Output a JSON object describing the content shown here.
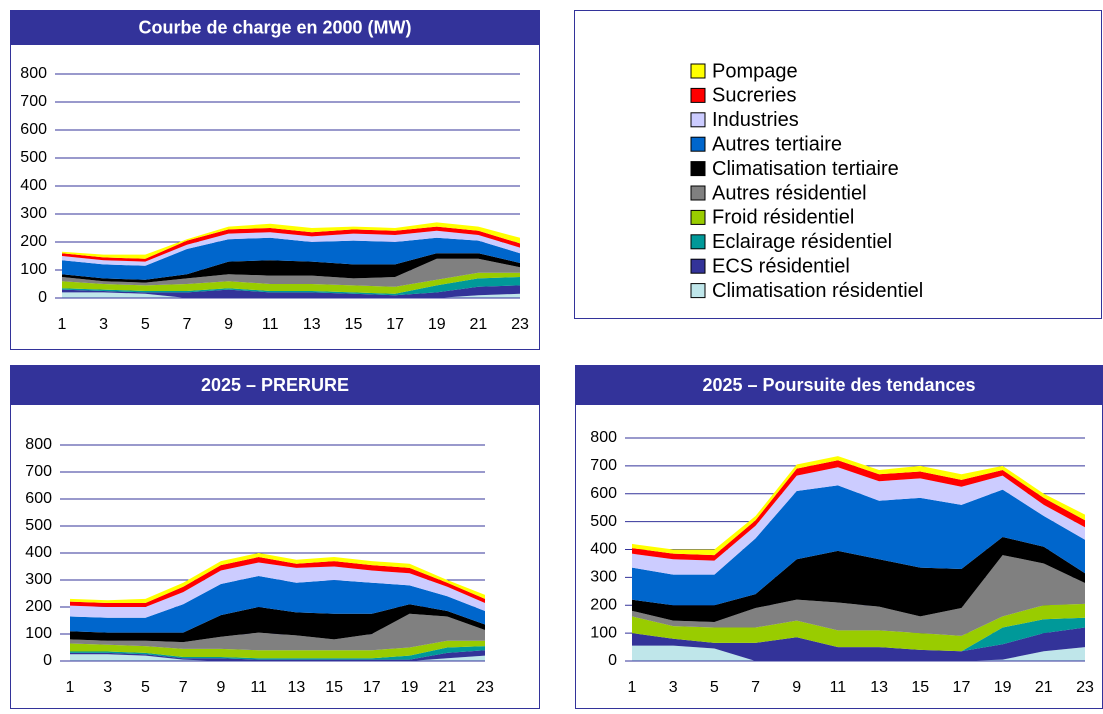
{
  "chart_data": [
    {
      "type": "area",
      "title": "Courbe de charge en 2000 (MW)",
      "x": [
        1,
        3,
        5,
        7,
        9,
        11,
        13,
        15,
        17,
        19,
        21,
        23
      ],
      "xlim": [
        1,
        23
      ],
      "xticks": [
        1,
        3,
        5,
        7,
        9,
        11,
        13,
        15,
        17,
        19,
        21,
        23
      ],
      "ylim": [
        0,
        800
      ],
      "yticks": [
        0,
        100,
        200,
        300,
        400,
        500,
        600,
        700,
        800
      ],
      "grid": true,
      "series": [
        {
          "name": "Climatisation résidentiel",
          "color": "#bfe6ea",
          "values": [
            20,
            20,
            15,
            0,
            0,
            0,
            0,
            0,
            0,
            0,
            10,
            15
          ]
        },
        {
          "name": "ECS résidentiel",
          "color": "#333399",
          "values": [
            10,
            5,
            5,
            20,
            30,
            20,
            20,
            15,
            10,
            20,
            30,
            30
          ]
        },
        {
          "name": "Eclairage résidentiel",
          "color": "#009999",
          "values": [
            5,
            5,
            5,
            5,
            5,
            5,
            5,
            5,
            5,
            25,
            30,
            30
          ]
        },
        {
          "name": "Froid résidentiel",
          "color": "#99cc00",
          "values": [
            25,
            20,
            20,
            25,
            25,
            25,
            25,
            25,
            25,
            20,
            20,
            15
          ]
        },
        {
          "name": "Autres résidentiel",
          "color": "#808080",
          "values": [
            15,
            10,
            10,
            20,
            25,
            30,
            30,
            25,
            35,
            75,
            50,
            20
          ]
        },
        {
          "name": "Climatisation tertiaire",
          "color": "#000000",
          "values": [
            10,
            10,
            10,
            15,
            45,
            55,
            50,
            50,
            45,
            20,
            20,
            15
          ]
        },
        {
          "name": "Autres tertiaire",
          "color": "#0066cc",
          "values": [
            50,
            50,
            50,
            90,
            80,
            80,
            70,
            85,
            80,
            55,
            45,
            35
          ]
        },
        {
          "name": "Industries",
          "color": "#ccccff",
          "values": [
            15,
            15,
            15,
            15,
            20,
            20,
            20,
            25,
            25,
            25,
            20,
            20
          ]
        },
        {
          "name": "Sucreries",
          "color": "#ff0000",
          "values": [
            10,
            10,
            10,
            15,
            15,
            15,
            15,
            15,
            15,
            15,
            15,
            15
          ]
        },
        {
          "name": "Pompage",
          "color": "#ffff00",
          "values": [
            5,
            10,
            15,
            5,
            10,
            15,
            15,
            10,
            10,
            15,
            15,
            20
          ]
        }
      ]
    },
    {
      "type": "area",
      "title": "2025 – PRERURE",
      "x": [
        1,
        3,
        5,
        7,
        9,
        11,
        13,
        15,
        17,
        19,
        21,
        23
      ],
      "xlim": [
        1,
        23
      ],
      "xticks": [
        1,
        3,
        5,
        7,
        9,
        11,
        13,
        15,
        17,
        19,
        21,
        23
      ],
      "ylim": [
        0,
        800
      ],
      "yticks": [
        0,
        100,
        200,
        300,
        400,
        500,
        600,
        700,
        800
      ],
      "grid": true,
      "series": [
        {
          "values": [
            25,
            25,
            20,
            5,
            0,
            0,
            0,
            0,
            0,
            0,
            10,
            20
          ]
        },
        {
          "values": [
            5,
            5,
            5,
            5,
            10,
            5,
            5,
            5,
            5,
            5,
            20,
            20
          ]
        },
        {
          "values": [
            5,
            5,
            5,
            5,
            5,
            5,
            5,
            5,
            5,
            15,
            20,
            15
          ]
        },
        {
          "values": [
            30,
            25,
            25,
            30,
            30,
            30,
            30,
            30,
            30,
            30,
            25,
            20
          ]
        },
        {
          "values": [
            15,
            15,
            20,
            25,
            45,
            65,
            55,
            40,
            60,
            125,
            90,
            40
          ]
        },
        {
          "values": [
            30,
            30,
            30,
            35,
            80,
            95,
            85,
            95,
            75,
            35,
            20,
            20
          ]
        },
        {
          "values": [
            55,
            55,
            55,
            105,
            115,
            115,
            110,
            125,
            115,
            70,
            55,
            50
          ]
        },
        {
          "values": [
            40,
            40,
            40,
            45,
            50,
            50,
            55,
            50,
            45,
            45,
            35,
            30
          ]
        },
        {
          "values": [
            15,
            15,
            15,
            20,
            20,
            20,
            15,
            20,
            20,
            20,
            15,
            15
          ]
        },
        {
          "values": [
            10,
            10,
            15,
            15,
            15,
            15,
            15,
            15,
            15,
            15,
            10,
            15
          ]
        }
      ]
    },
    {
      "type": "area",
      "title": "2025 – Poursuite des tendances",
      "x": [
        1,
        3,
        5,
        7,
        9,
        11,
        13,
        15,
        17,
        19,
        21,
        23
      ],
      "xlim": [
        1,
        23
      ],
      "xticks": [
        1,
        3,
        5,
        7,
        9,
        11,
        13,
        15,
        17,
        19,
        21,
        23
      ],
      "ylim": [
        0,
        800
      ],
      "yticks": [
        0,
        100,
        200,
        300,
        400,
        500,
        600,
        700,
        800
      ],
      "grid": true,
      "series": [
        {
          "values": [
            55,
            55,
            45,
            0,
            0,
            0,
            0,
            0,
            0,
            5,
            35,
            50
          ]
        },
        {
          "values": [
            45,
            25,
            20,
            65,
            85,
            50,
            50,
            40,
            35,
            55,
            65,
            70
          ]
        },
        {
          "values": [
            0,
            0,
            0,
            0,
            0,
            0,
            0,
            0,
            0,
            60,
            50,
            35
          ]
        },
        {
          "values": [
            60,
            45,
            55,
            55,
            60,
            60,
            60,
            60,
            55,
            40,
            50,
            50
          ]
        },
        {
          "values": [
            20,
            20,
            20,
            70,
            75,
            100,
            85,
            60,
            100,
            220,
            150,
            75
          ]
        },
        {
          "values": [
            40,
            55,
            60,
            50,
            145,
            185,
            170,
            175,
            140,
            65,
            60,
            35
          ]
        },
        {
          "values": [
            115,
            110,
            110,
            200,
            245,
            235,
            210,
            250,
            230,
            170,
            110,
            120
          ]
        },
        {
          "values": [
            50,
            55,
            50,
            45,
            55,
            65,
            70,
            70,
            65,
            50,
            40,
            45
          ]
        },
        {
          "values": [
            20,
            20,
            20,
            20,
            25,
            25,
            25,
            25,
            25,
            20,
            25,
            25
          ]
        },
        {
          "values": [
            15,
            15,
            20,
            15,
            15,
            15,
            15,
            20,
            20,
            15,
            15,
            20
          ]
        }
      ]
    }
  ]
}
